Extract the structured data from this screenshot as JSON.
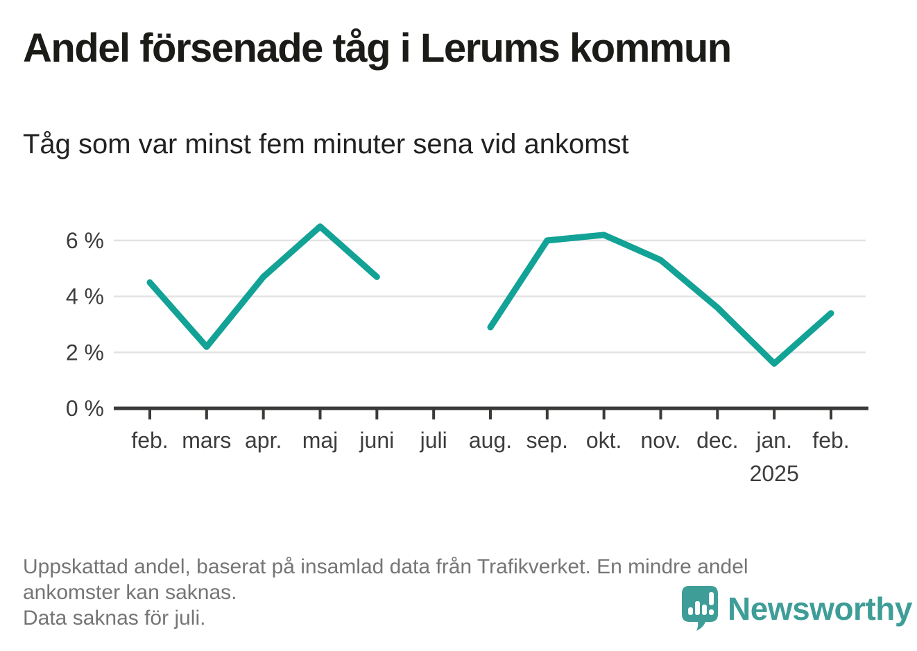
{
  "header": {
    "title": "Andel försenade tåg i Lerums kommun",
    "subtitle": "Tåg som var minst fem minuter sena vid ankomst"
  },
  "chart_data": {
    "type": "line",
    "title": "Andel försenade tåg i Lerums kommun",
    "subtitle": "Tåg som var minst fem minuter sena vid ankomst",
    "unit": "%",
    "categories": [
      "feb.",
      "mars",
      "apr.",
      "maj",
      "juni",
      "juli",
      "aug.",
      "sep.",
      "okt.",
      "nov.",
      "dec.",
      "jan.",
      "feb."
    ],
    "x_year_label": {
      "text": "2025",
      "category_index": 11
    },
    "series": [
      {
        "name": "Andel försenade tåg",
        "values": [
          4.5,
          2.2,
          4.7,
          6.5,
          4.7,
          null,
          2.9,
          6.0,
          6.2,
          5.3,
          3.6,
          1.6,
          3.4
        ],
        "color": "#12a296"
      }
    ],
    "y_ticks": [
      {
        "value": 0,
        "label": "0 %"
      },
      {
        "value": 2,
        "label": "2 %"
      },
      {
        "value": 4,
        "label": "4 %"
      },
      {
        "value": 6,
        "label": "6 %"
      }
    ],
    "ylim": [
      0,
      7.2
    ],
    "grid": true,
    "legend": "none",
    "missing_data_category": "juli",
    "colors": {
      "line": "#12a296",
      "gridline": "#e2e2e2",
      "axis": "#3a3a38",
      "tick_label": "#3d3d3d"
    }
  },
  "footer": {
    "lines": [
      "Uppskattad andel, baserat på insamlad data från Trafikverket. En mindre andel",
      "ankomster kan saknas.",
      "Data saknas för juli."
    ]
  },
  "logo": {
    "wordmark": "Newsworthy",
    "color": "#3f9d98",
    "icon": "newsworthy-bubble-chart-icon"
  }
}
